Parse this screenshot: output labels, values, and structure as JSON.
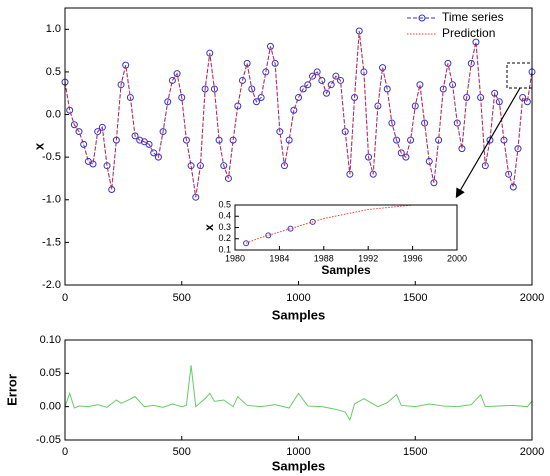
{
  "chart_data": [
    {
      "type": "line",
      "xlabel": "Samples",
      "ylabel": "x",
      "xlim": [
        0,
        2000
      ],
      "ylim": [
        -2,
        1.25
      ],
      "xticks": [
        0,
        500,
        1000,
        1500,
        2000
      ],
      "yticks": [
        {
          "value": -2,
          "label": "-2.0"
        },
        {
          "value": -1.5,
          "label": "-1.5"
        },
        {
          "value": -1,
          "label": "-1.0"
        },
        -0.5,
        {
          "value": 0,
          "label": "0.0"
        },
        0.5,
        {
          "value": 1,
          "label": "1.0"
        }
      ],
      "legend": "upper right",
      "x": [
        0,
        20,
        40,
        60,
        80,
        100,
        120,
        140,
        160,
        180,
        200,
        220,
        240,
        260,
        280,
        300,
        320,
        340,
        360,
        380,
        400,
        420,
        440,
        460,
        480,
        500,
        520,
        540,
        560,
        580,
        600,
        620,
        640,
        660,
        680,
        700,
        720,
        740,
        760,
        780,
        800,
        820,
        840,
        860,
        880,
        900,
        920,
        940,
        960,
        980,
        1000,
        1020,
        1040,
        1060,
        1080,
        1100,
        1120,
        1140,
        1160,
        1180,
        1200,
        1220,
        1240,
        1260,
        1280,
        1300,
        1320,
        1340,
        1360,
        1380,
        1400,
        1420,
        1440,
        1460,
        1480,
        1500,
        1520,
        1540,
        1560,
        1580,
        1600,
        1620,
        1640,
        1660,
        1680,
        1700,
        1720,
        1740,
        1760,
        1780,
        1800,
        1820,
        1840,
        1860,
        1880,
        1900,
        1920,
        1940,
        1960,
        1980,
        2000
      ],
      "series": [
        {
          "name": "Time series",
          "color": "#3333cc",
          "linestyle": "dashed",
          "marker": "circle",
          "values": [
            0.38,
            0.05,
            -0.12,
            -0.2,
            -0.35,
            -0.55,
            -0.58,
            -0.2,
            -0.15,
            -0.6,
            -0.88,
            -0.3,
            0.35,
            0.58,
            0.2,
            -0.25,
            -0.3,
            -0.32,
            -0.35,
            -0.45,
            -0.5,
            -0.2,
            0.15,
            0.4,
            0.48,
            0.2,
            -0.3,
            -0.6,
            -0.97,
            -0.6,
            0.3,
            0.72,
            0.3,
            -0.3,
            -0.6,
            -0.75,
            -0.3,
            0.1,
            0.4,
            0.6,
            0.3,
            0.15,
            0.2,
            0.5,
            0.8,
            0.6,
            -0.2,
            -0.6,
            -0.3,
            0.05,
            0.2,
            0.3,
            0.35,
            0.45,
            0.5,
            0.4,
            0.25,
            0.35,
            0.45,
            0.4,
            -0.2,
            -0.7,
            0.2,
            0.98,
            0.5,
            -0.5,
            -0.7,
            0.1,
            0.55,
            0.3,
            -0.1,
            -0.3,
            -0.45,
            -0.5,
            -0.3,
            0.1,
            0.35,
            -0.1,
            -0.55,
            -0.8,
            -0.3,
            0.3,
            0.6,
            0.35,
            -0.1,
            -0.4,
            0.2,
            0.6,
            0.85,
            0.2,
            -0.6,
            -0.3,
            0.25,
            0.15,
            -0.3,
            -0.7,
            -0.85,
            -0.4,
            0.2,
            0.15,
            0.5
          ]
        },
        {
          "name": "Prediction",
          "color": "#ff3333",
          "linestyle": "dotted",
          "values": [
            0.38,
            0.05,
            -0.12,
            -0.2,
            -0.35,
            -0.55,
            -0.58,
            -0.2,
            -0.15,
            -0.6,
            -0.88,
            -0.3,
            0.35,
            0.58,
            0.2,
            -0.25,
            -0.3,
            -0.32,
            -0.35,
            -0.45,
            -0.5,
            -0.2,
            0.15,
            0.4,
            0.48,
            0.2,
            -0.3,
            -0.6,
            -0.97,
            -0.6,
            0.3,
            0.72,
            0.3,
            -0.3,
            -0.6,
            -0.75,
            -0.3,
            0.1,
            0.4,
            0.6,
            0.3,
            0.15,
            0.2,
            0.5,
            0.8,
            0.6,
            -0.2,
            -0.6,
            -0.3,
            0.05,
            0.2,
            0.3,
            0.35,
            0.45,
            0.5,
            0.4,
            0.25,
            0.35,
            0.45,
            0.4,
            -0.2,
            -0.7,
            0.2,
            0.98,
            0.5,
            -0.5,
            -0.7,
            0.1,
            0.55,
            0.3,
            -0.1,
            -0.3,
            -0.45,
            -0.5,
            -0.3,
            0.1,
            0.35,
            -0.1,
            -0.55,
            -0.8,
            -0.3,
            0.3,
            0.6,
            0.35,
            -0.1,
            -0.4,
            0.2,
            0.6,
            0.85,
            0.2,
            -0.6,
            -0.3,
            0.25,
            0.15,
            -0.3,
            -0.7,
            -0.85,
            -0.4,
            0.2,
            0.15,
            0.5
          ]
        }
      ]
    },
    {
      "type": "line",
      "xlabel": "Samples",
      "ylabel": "Error",
      "xlim": [
        0,
        2000
      ],
      "ylim": [
        -0.05,
        0.1
      ],
      "xticks": [
        0,
        500,
        1000,
        1500,
        2000
      ],
      "yticks": [
        -0.05,
        {
          "value": 0,
          "label": "0.00"
        },
        0.05,
        {
          "value": 0.1,
          "label": "0.10"
        }
      ],
      "x": [
        0,
        20,
        40,
        60,
        100,
        140,
        180,
        220,
        240,
        260,
        300,
        340,
        380,
        420,
        460,
        500,
        520,
        540,
        560,
        600,
        620,
        640,
        680,
        720,
        740,
        780,
        840,
        900,
        960,
        1000,
        1040,
        1100,
        1160,
        1200,
        1220,
        1240,
        1280,
        1340,
        1380,
        1420,
        1440,
        1500,
        1560,
        1620,
        1680,
        1740,
        1780,
        1800,
        1860,
        1920,
        1980,
        2000
      ],
      "series": [
        {
          "name": "Error",
          "color": "#66cc66",
          "linestyle": "solid",
          "values": [
            0.0,
            0.02,
            -0.002,
            0.001,
            0.0,
            0.003,
            -0.001,
            0.01,
            0.005,
            0.008,
            0.015,
            0.0,
            0.002,
            -0.001,
            0.004,
            0.0,
            0.002,
            0.062,
            0.0,
            0.012,
            0.02,
            0.008,
            0.01,
            0.0,
            0.015,
            0.002,
            0.0,
            0.003,
            -0.002,
            0.02,
            0.001,
            0.0,
            -0.004,
            -0.008,
            -0.02,
            0.004,
            0.012,
            0.0,
            0.006,
            0.018,
            0.002,
            0.0,
            0.004,
            0.001,
            0.0,
            0.003,
            0.018,
            0.0,
            0.001,
            0.002,
            0.0,
            0.008
          ]
        }
      ]
    },
    {
      "type": "line",
      "xlabel": "Samples",
      "ylabel": "x",
      "xlim": [
        1980,
        2000
      ],
      "ylim": [
        0.1,
        0.5
      ],
      "xticks": [
        1980,
        1984,
        1988,
        1992,
        1996,
        2000
      ],
      "yticks": [
        0.1,
        0.2,
        0.3,
        0.4,
        0.5
      ],
      "x": [
        1981,
        1982,
        1983,
        1984,
        1985,
        1986,
        1987,
        1988,
        1989,
        1990,
        1991,
        1992,
        1993,
        1994,
        1995,
        1996,
        1997,
        1998,
        1999,
        2000
      ],
      "series": [
        {
          "name": "Time series",
          "color": "#3333cc",
          "linestyle": "dashed",
          "marker": "circle",
          "values": [
            0.16,
            null,
            0.23,
            null,
            0.29,
            null,
            0.35,
            null,
            null,
            null,
            null,
            null,
            null,
            null,
            null,
            null,
            null,
            null,
            null,
            null
          ]
        },
        {
          "name": "Prediction",
          "color": "#ff3333",
          "linestyle": "dotted",
          "values": [
            0.16,
            0.2,
            0.23,
            0.26,
            0.29,
            0.32,
            0.35,
            0.38,
            0.4,
            0.42,
            0.44,
            0.46,
            0.47,
            0.48,
            0.49,
            0.5,
            0.5,
            0.51,
            0.51,
            0.51
          ]
        }
      ]
    }
  ]
}
